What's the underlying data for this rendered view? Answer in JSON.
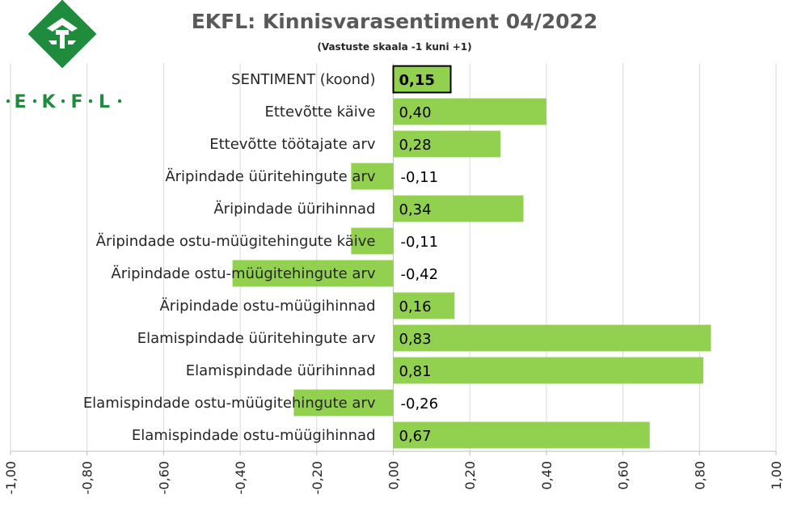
{
  "logo": {
    "text_letters": [
      "E",
      "K",
      "F",
      "L"
    ],
    "colors": {
      "green": "#1e8c3c"
    }
  },
  "colors": {
    "bar": "#92d050",
    "highlight_outline": "#000000",
    "grid": "#d9d9d9",
    "axis": "#bfbfbf"
  },
  "chart_data": {
    "type": "bar",
    "orientation": "horizontal",
    "title": "EKFL: Kinnisvarasentiment 04/2022",
    "subtitle": "(Vastuste skaala -1 kuni +1)",
    "xlim": [
      -1.0,
      1.0
    ],
    "x_ticks": [
      "-1,00",
      "-0,80",
      "-0,60",
      "-0,40",
      "-0,20",
      "0,00",
      "0,20",
      "0,40",
      "0,60",
      "0,80",
      "1,00"
    ],
    "grid": true,
    "categories": [
      "SENTIMENT (koond)",
      "Ettevõtte käive",
      "Ettevõtte töötajate arv",
      "Äripindade üüritehingute arv",
      "Äripindade üürihinnad",
      "Äripindade ostu-müügitehingute käive",
      "Äripindade ostu-müügitehingute arv",
      "Äripindade ostu-müügihinnad",
      "Elamispindade üüritehingute arv",
      "Elamispindade üürihinnad",
      "Elamispindade ostu-müügitehingute arv",
      "Elamispindade ostu-müügihinnad"
    ],
    "values": [
      0.15,
      0.4,
      0.28,
      -0.11,
      0.34,
      -0.11,
      -0.42,
      0.16,
      0.83,
      0.81,
      -0.26,
      0.67
    ],
    "value_labels": [
      "0,15",
      "0,40",
      "0,28",
      "-0,11",
      "0,34",
      "-0,11",
      "-0,42",
      "0,16",
      "0,83",
      "0,81",
      "-0,26",
      "0,67"
    ],
    "highlight_index": 0
  }
}
